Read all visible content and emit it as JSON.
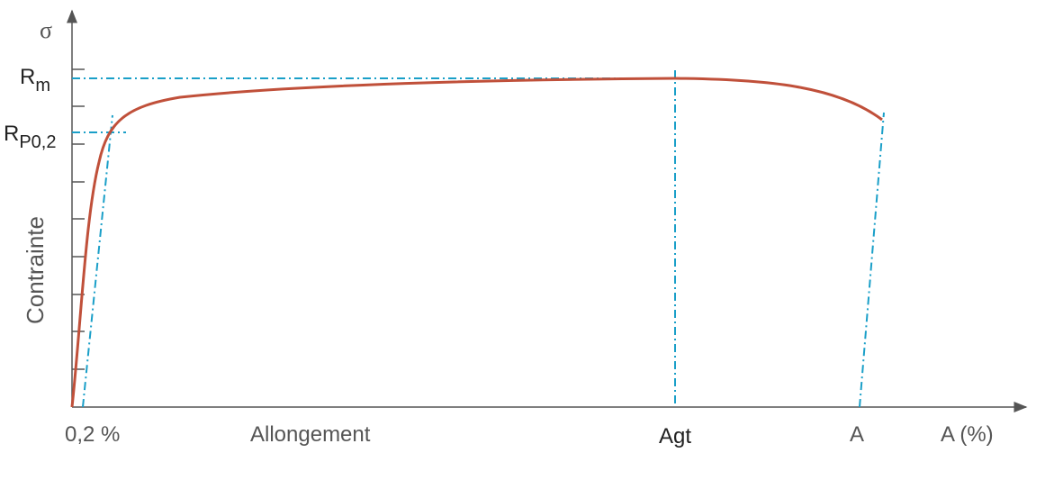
{
  "y_axis": {
    "symbol": "σ",
    "title": "Contrainte",
    "labels": [
      {
        "base": "R",
        "sub": "m"
      },
      {
        "base": "R",
        "sub": "P0,2"
      }
    ]
  },
  "x_axis": {
    "title": "Allongement",
    "unit_label": "A (%)",
    "labels": [
      "0,2 %",
      "Agt",
      "A"
    ]
  }
}
